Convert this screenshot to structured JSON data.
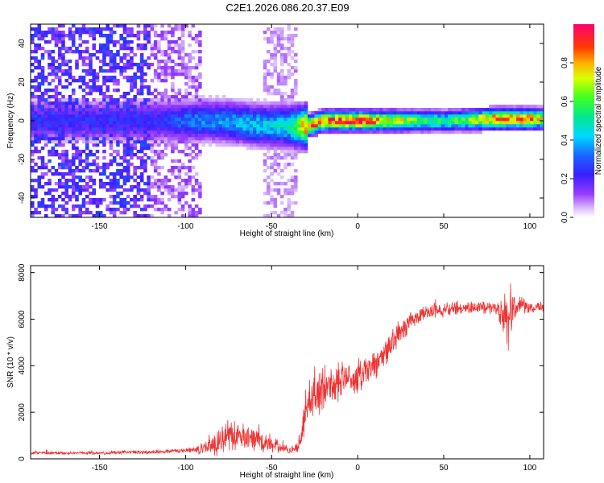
{
  "title": "C2E1.2026.086.20.37.E09",
  "chart_data": [
    {
      "type": "heatmap",
      "title": "C2E1.2026.086.20.37.E09",
      "xlabel": "Height of straight line (km)",
      "ylabel": "Frequency (Hz)",
      "xlim": [
        -190,
        108
      ],
      "ylim": [
        -50,
        50
      ],
      "xticks": [
        -150,
        -100,
        -50,
        0,
        50,
        100
      ],
      "yticks": [
        -40,
        -20,
        0,
        20,
        40
      ],
      "xtick_labels": [
        "-150",
        "-100",
        "-50",
        "0",
        "50",
        "100"
      ],
      "ytick_labels": [
        "-40",
        "-20",
        "0",
        "20",
        "40"
      ],
      "colorbar": {
        "label": "Normalized spectral amplitude",
        "range": [
          0,
          1
        ],
        "ticks": [
          0.0,
          0.2,
          0.4,
          0.6,
          0.8
        ],
        "tick_labels": [
          "0.0",
          "0.2",
          "0.4",
          "0.6",
          "0.8"
        ],
        "colormap": "rainbow"
      },
      "ridge": [
        {
          "x": -120,
          "freq": 0,
          "amp": 0.25
        },
        {
          "x": -100,
          "freq": 0,
          "amp": 0.35
        },
        {
          "x": -80,
          "freq": 0,
          "amp": 0.4
        },
        {
          "x": -60,
          "freq": -2,
          "amp": 0.45
        },
        {
          "x": -40,
          "freq": -3,
          "amp": 0.5
        },
        {
          "x": -30,
          "freq": -3,
          "amp": 0.9
        },
        {
          "x": -20,
          "freq": 0,
          "amp": 0.95
        },
        {
          "x": 0,
          "freq": 0,
          "amp": 1.0
        },
        {
          "x": 20,
          "freq": 0,
          "amp": 0.8
        },
        {
          "x": 50,
          "freq": 0,
          "amp": 0.55
        },
        {
          "x": 80,
          "freq": 1,
          "amp": 0.9
        },
        {
          "x": 100,
          "freq": 1,
          "amp": 0.9
        },
        {
          "x": 108,
          "freq": 1,
          "amp": 0.75
        }
      ],
      "noise_regions": [
        {
          "x_from": -190,
          "x_to": -120,
          "amp": 0.3
        },
        {
          "x_from": -120,
          "x_to": -90,
          "amp": 0.15
        },
        {
          "x_from": -55,
          "x_to": -35,
          "amp": 0.1
        }
      ]
    },
    {
      "type": "line",
      "xlabel": "Height of straight line (km)",
      "ylabel": "SNR (10 * v/v)",
      "xlim": [
        -190,
        108
      ],
      "ylim": [
        0,
        8300
      ],
      "xticks": [
        -150,
        -100,
        -50,
        0,
        50,
        100
      ],
      "yticks": [
        0,
        2000,
        4000,
        6000,
        8000
      ],
      "xtick_labels": [
        "-150",
        "-100",
        "-50",
        "0",
        "50",
        "100"
      ],
      "ytick_labels": [
        "0",
        "2000",
        "4000",
        "6000",
        "8000"
      ],
      "color": "#ee3333",
      "series": [
        {
          "name": "SNR",
          "x": [
            -190,
            -150,
            -120,
            -100,
            -90,
            -85,
            -80,
            -75,
            -70,
            -65,
            -60,
            -55,
            -50,
            -45,
            -40,
            -35,
            -32,
            -30,
            -28,
            -25,
            -22,
            -20,
            -18,
            -15,
            -10,
            -5,
            0,
            5,
            10,
            15,
            20,
            25,
            30,
            35,
            40,
            50,
            60,
            70,
            80,
            85,
            88,
            90,
            92,
            95,
            100,
            108
          ],
          "y": [
            250,
            250,
            300,
            350,
            450,
            600,
            800,
            1000,
            1000,
            900,
            800,
            700,
            650,
            450,
            400,
            450,
            1200,
            2300,
            2600,
            2700,
            2700,
            3100,
            3200,
            3200,
            3400,
            3500,
            3500,
            3700,
            4000,
            4500,
            5000,
            5500,
            5900,
            6100,
            6300,
            6400,
            6500,
            6500,
            6500,
            6200,
            5800,
            6200,
            6600,
            6600,
            6500,
            6500
          ],
          "noise": [
            80,
            80,
            100,
            130,
            250,
            600,
            800,
            800,
            700,
            600,
            550,
            500,
            450,
            250,
            200,
            250,
            900,
            1000,
            1200,
            1300,
            1300,
            1200,
            1100,
            1000,
            900,
            900,
            900,
            800,
            800,
            800,
            700,
            600,
            500,
            400,
            350,
            350,
            350,
            350,
            350,
            1200,
            1500,
            1200,
            500,
            400,
            300,
            300
          ]
        }
      ]
    }
  ]
}
